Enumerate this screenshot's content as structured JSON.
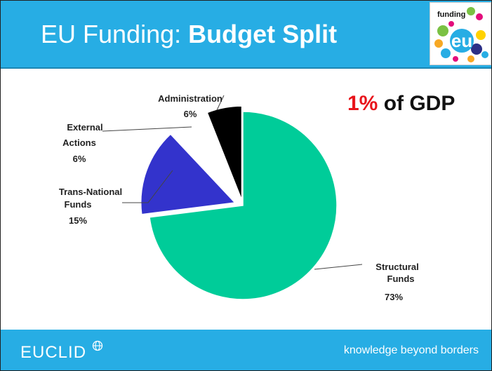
{
  "header": {
    "title_prefix": "EU Funding: ",
    "title_bold": "Budget Split",
    "logo_text": "funding",
    "logo_mark": "eu"
  },
  "callout": {
    "value": "1%",
    "suffix": " of GDP",
    "highlight_color": "#e8141b"
  },
  "chart_data": {
    "type": "pie",
    "title": "",
    "slices": [
      {
        "label": [
          "Structural",
          "Funds"
        ],
        "pct": "73%",
        "value": 73,
        "color": "#00cc99"
      },
      {
        "label": [
          "Trans-National",
          "Funds"
        ],
        "pct": "15%",
        "value": 15,
        "color": "#3333cc"
      },
      {
        "label": [
          "External",
          "Actions"
        ],
        "pct": "6%",
        "value": 6,
        "color": "#ffffff"
      },
      {
        "label": [
          "Administration"
        ],
        "pct": "6%",
        "value": 6,
        "color": "#000000"
      }
    ],
    "exploded": true,
    "legend": "none"
  },
  "footer": {
    "brand": "EUCLID",
    "brand_icon": "globe-icon",
    "tagline": "knowledge beyond borders"
  },
  "colors": {
    "header_bg": "#27ade4",
    "footer_bg": "#27ade4"
  }
}
